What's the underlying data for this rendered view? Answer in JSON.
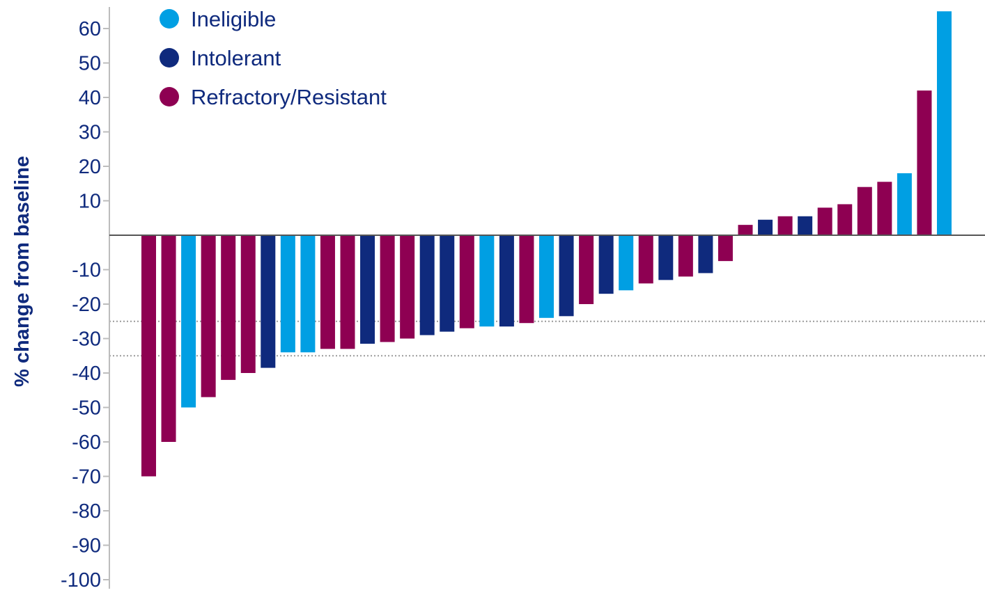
{
  "chart_data": {
    "type": "bar",
    "title": "",
    "xlabel": "",
    "ylabel": "% change from baseline",
    "ylim": [
      -100,
      65
    ],
    "yticks": [
      60,
      50,
      40,
      30,
      20,
      10,
      -10,
      -20,
      -30,
      -40,
      -50,
      -60,
      -70,
      -80,
      -90,
      -100
    ],
    "ytick_labels": [
      "60",
      "50",
      "40",
      "30",
      "20",
      "10",
      "-10",
      "-20",
      "-30",
      "-40",
      "-50",
      "-60",
      "-70",
      "-80",
      "-90",
      "-100"
    ],
    "reference_lines": [
      -25,
      -35
    ],
    "grid": false,
    "legend_position": "top-left",
    "legend": [
      {
        "key": "ineligible",
        "label": "Ineligible",
        "color": "#009FE3"
      },
      {
        "key": "intolerant",
        "label": "Intolerant",
        "color": "#0F2A7D"
      },
      {
        "key": "refractory",
        "label": "Refractory/Resistant",
        "color": "#8E0052"
      }
    ],
    "bars": [
      {
        "value": -70,
        "group": "refractory"
      },
      {
        "value": -60,
        "group": "refractory"
      },
      {
        "value": -50,
        "group": "ineligible"
      },
      {
        "value": -47,
        "group": "refractory"
      },
      {
        "value": -42,
        "group": "refractory"
      },
      {
        "value": -40,
        "group": "refractory"
      },
      {
        "value": -38.5,
        "group": "intolerant"
      },
      {
        "value": -34,
        "group": "ineligible"
      },
      {
        "value": -34,
        "group": "ineligible"
      },
      {
        "value": -33,
        "group": "refractory"
      },
      {
        "value": -33,
        "group": "refractory"
      },
      {
        "value": -31.5,
        "group": "intolerant"
      },
      {
        "value": -31,
        "group": "refractory"
      },
      {
        "value": -30,
        "group": "refractory"
      },
      {
        "value": -29,
        "group": "intolerant"
      },
      {
        "value": -28,
        "group": "intolerant"
      },
      {
        "value": -27,
        "group": "refractory"
      },
      {
        "value": -26.5,
        "group": "ineligible"
      },
      {
        "value": -26.5,
        "group": "intolerant"
      },
      {
        "value": -25.5,
        "group": "refractory"
      },
      {
        "value": -24,
        "group": "ineligible"
      },
      {
        "value": -23.5,
        "group": "intolerant"
      },
      {
        "value": -20,
        "group": "refractory"
      },
      {
        "value": -17,
        "group": "intolerant"
      },
      {
        "value": -16,
        "group": "ineligible"
      },
      {
        "value": -14,
        "group": "refractory"
      },
      {
        "value": -13,
        "group": "intolerant"
      },
      {
        "value": -12,
        "group": "refractory"
      },
      {
        "value": -11,
        "group": "intolerant"
      },
      {
        "value": -7.5,
        "group": "refractory"
      },
      {
        "value": 3,
        "group": "refractory"
      },
      {
        "value": 4.5,
        "group": "intolerant"
      },
      {
        "value": 5.5,
        "group": "refractory"
      },
      {
        "value": 5.5,
        "group": "intolerant"
      },
      {
        "value": 8,
        "group": "refractory"
      },
      {
        "value": 9,
        "group": "refractory"
      },
      {
        "value": 14,
        "group": "refractory"
      },
      {
        "value": 15.5,
        "group": "refractory"
      },
      {
        "value": 18,
        "group": "ineligible"
      },
      {
        "value": 42,
        "group": "refractory"
      },
      {
        "value": 65,
        "group": "ineligible"
      }
    ]
  }
}
